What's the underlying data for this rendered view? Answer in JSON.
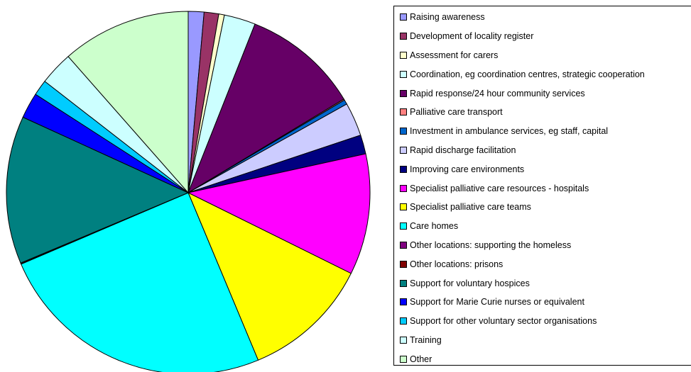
{
  "chart_data": {
    "type": "pie",
    "legend_position": "right",
    "slices": [
      {
        "label": "Raising awareness",
        "value": 1.4,
        "color": "#9999FF"
      },
      {
        "label": "Development of locality register",
        "value": 1.3,
        "color": "#993366"
      },
      {
        "label": "Assessment for carers",
        "value": 0.5,
        "color": "#FFFFCC"
      },
      {
        "label": "Coordination, eg coordination centres, strategic cooperation",
        "value": 2.8,
        "color": "#CCFFFF"
      },
      {
        "label": "Rapid response/24 hour community services",
        "value": 10.4,
        "color": "#660066"
      },
      {
        "label": "Palliative care transport",
        "value": 0.1,
        "color": "#FF8080"
      },
      {
        "label": "Investment in ambulance services, eg staff, capital",
        "value": 0.4,
        "color": "#0066CC"
      },
      {
        "label": "Rapid discharge facilitation",
        "value": 3.0,
        "color": "#CCCCFF"
      },
      {
        "label": "Improving care environments",
        "value": 1.7,
        "color": "#000080"
      },
      {
        "label": "Specialist palliative care resources - hospitals",
        "value": 10.8,
        "color": "#FF00FF"
      },
      {
        "label": "Specialist palliative care teams",
        "value": 11.4,
        "color": "#FFFF00"
      },
      {
        "label": "Care homes",
        "value": 24.9,
        "color": "#00FFFF"
      },
      {
        "label": "Other locations: supporting the homeless",
        "value": 0.05,
        "color": "#800080"
      },
      {
        "label": "Other locations: prisons",
        "value": 0.05,
        "color": "#800000"
      },
      {
        "label": "Support for voluntary hospices",
        "value": 13.2,
        "color": "#008080"
      },
      {
        "label": "Support for Marie Curie nurses or equivalent",
        "value": 2.3,
        "color": "#0000FF"
      },
      {
        "label": "Support for other voluntary sector organisations",
        "value": 1.4,
        "color": "#00CCFF"
      },
      {
        "label": "Training",
        "value": 3.0,
        "color": "#CCFFFF"
      },
      {
        "label": "Other",
        "value": 11.5,
        "color": "#CCFFCC"
      }
    ]
  }
}
